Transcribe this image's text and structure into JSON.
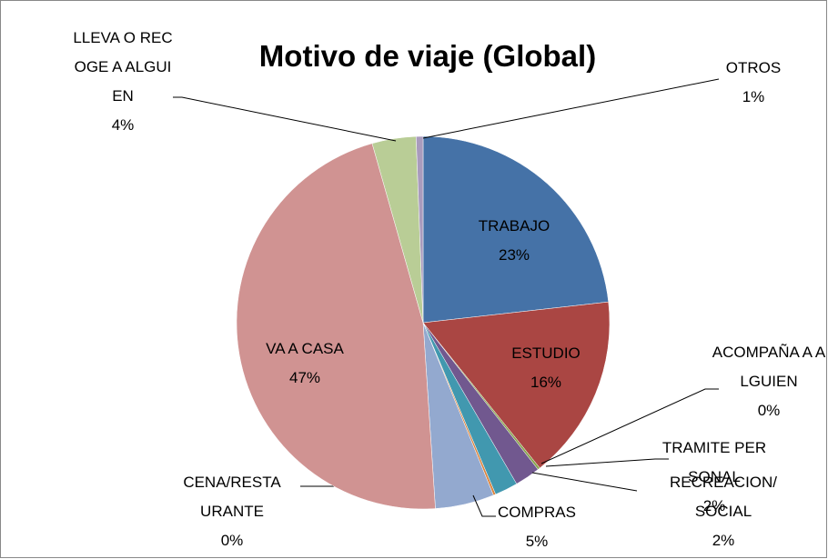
{
  "chart_data": {
    "type": "pie",
    "title": "Motivo de viaje (Global)",
    "categories": [
      "TRABAJO",
      "ESTUDIO",
      "ACOMPAÑA A ALGUIEN",
      "TRAMITE PERSONAL",
      "RECREACION/SOCIAL",
      "CENA/RESTAURANTE",
      "COMPRAS",
      "VA A CASA",
      "LLEVA O RECOGE A ALGUIEN",
      "OTROS"
    ],
    "values": [
      23.2,
      16.0,
      0.2,
      2.2,
      2.0,
      0.2,
      5.1,
      46.6,
      3.8,
      0.6
    ],
    "value_labels": [
      "23%",
      "16%",
      "0%",
      "2%",
      "2%",
      "0%",
      "5%",
      "47%",
      "4%",
      "1%"
    ],
    "colors": [
      "#4572a7",
      "#aa4643",
      "#89a54e",
      "#71588f",
      "#4198af",
      "#db843d",
      "#93a9cf",
      "#d09392",
      "#b9cd96",
      "#a99bbd"
    ]
  }
}
